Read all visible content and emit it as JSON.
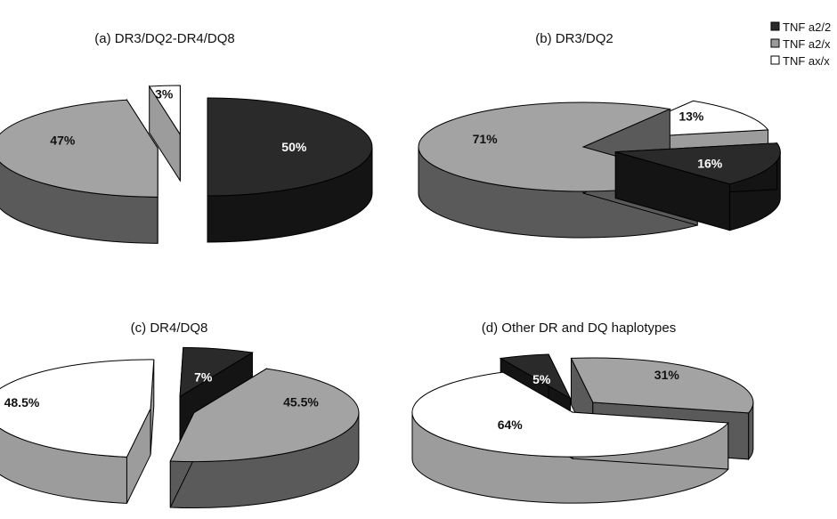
{
  "chart_data": [
    {
      "type": "pie",
      "title": "(a) DR3/DQ2-DR4/DQ8",
      "slices": [
        {
          "label": "TNF a2/2",
          "value": 50,
          "text": "50%"
        },
        {
          "label": "TNF a2/x",
          "value": 47,
          "text": "47%"
        },
        {
          "label": "TNF ax/x",
          "value": 3,
          "text": "3%"
        }
      ]
    },
    {
      "type": "pie",
      "title": "(b) DR3/DQ2",
      "slices": [
        {
          "label": "TNF a2/2",
          "value": 16,
          "text": "16%"
        },
        {
          "label": "TNF a2/x",
          "value": 71,
          "text": "71%"
        },
        {
          "label": "TNF ax/x",
          "value": 13,
          "text": "13%"
        }
      ]
    },
    {
      "type": "pie",
      "title": "(c) DR4/DQ8",
      "slices": [
        {
          "label": "TNF a2/2",
          "value": 7,
          "text": "7%"
        },
        {
          "label": "TNF a2/x",
          "value": 45.5,
          "text": "45.5%"
        },
        {
          "label": "TNF ax/x",
          "value": 48.5,
          "text": "48.5%"
        }
      ]
    },
    {
      "type": "pie",
      "title": "(d) Other DR and DQ haplotypes",
      "slices": [
        {
          "label": "TNF a2/2",
          "value": 5,
          "text": "5%"
        },
        {
          "label": "TNF a2/x",
          "value": 31,
          "text": "31%"
        },
        {
          "label": "TNF ax/x",
          "value": 64,
          "text": "64%"
        }
      ]
    }
  ],
  "legend": {
    "placement": "top-right",
    "entries": [
      {
        "label": "TNF a2/2",
        "color": "#2a2a2a"
      },
      {
        "label": "TNF a2/x",
        "color": "#9a9a9a"
      },
      {
        "label": "TNF ax/x",
        "color": "#ffffff"
      }
    ]
  },
  "colors": {
    "TNF a2/2": {
      "top": "#2a2a2a",
      "side": "#141414",
      "label": "#ffffff"
    },
    "TNF a2/x": {
      "top": "#a3a3a3",
      "side": "#5a5a5a",
      "label": "#111111"
    },
    "TNF ax/x": {
      "top": "#ffffff",
      "side": "#9c9c9c",
      "label": "#111111"
    }
  }
}
